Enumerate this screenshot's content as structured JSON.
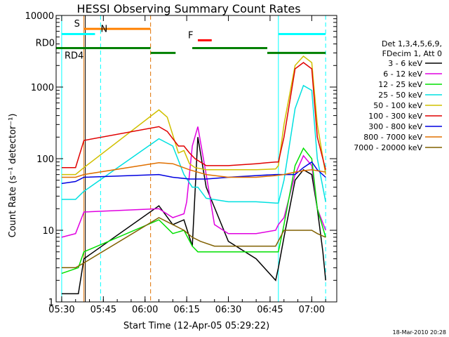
{
  "chart_data": {
    "type": "line",
    "title": "HESSI Observing Summary Count Rates",
    "xlabel": "Start Time (12-Apr-05 05:29:22)",
    "ylabel": "Count Rate (s⁻¹ detector⁻¹)",
    "xlim": [
      "05:28",
      "07:09"
    ],
    "ylim": [
      1,
      10000
    ],
    "yscale": "log",
    "x_ticks": [
      "05:30",
      "05:45",
      "06:00",
      "06:15",
      "06:30",
      "06:45",
      "07:00"
    ],
    "y_ticks": [
      "1",
      "10",
      "100",
      "1000",
      "10000"
    ],
    "legend_header": [
      "Det 1,3,4,5,6,9,",
      "FDecim 1, Att 0"
    ],
    "series": [
      {
        "name": "3 - 6 keV",
        "color": "#000000",
        "x": [
          "05:30",
          "05:36",
          "05:38",
          "06:05",
          "06:10",
          "06:14",
          "06:17",
          "06:19",
          "06:22",
          "06:30",
          "06:40",
          "06:47",
          "06:48",
          "06:50",
          "06:54",
          "06:57",
          "07:00",
          "07:02",
          "07:04",
          "07:05"
        ],
        "y": [
          1.3,
          1.3,
          4,
          22,
          12,
          14,
          6,
          200,
          40,
          7,
          4,
          2,
          3,
          8,
          50,
          70,
          60,
          20,
          5,
          2
        ]
      },
      {
        "name": "6 - 12 keV",
        "color": "#e000e0",
        "x": [
          "05:30",
          "05:35",
          "05:38",
          "06:05",
          "06:10",
          "06:14",
          "06:15",
          "06:17",
          "06:19",
          "06:22",
          "06:25",
          "06:30",
          "06:40",
          "06:47",
          "06:48",
          "06:50",
          "06:54",
          "06:57",
          "07:00",
          "07:02",
          "07:05"
        ],
        "y": [
          8,
          9,
          18,
          20,
          15,
          17,
          25,
          150,
          280,
          60,
          12,
          9,
          9,
          10,
          12,
          15,
          60,
          110,
          80,
          20,
          10
        ]
      },
      {
        "name": "12 - 25 keV",
        "color": "#00e000",
        "x": [
          "05:30",
          "05:36",
          "05:38",
          "06:05",
          "06:10",
          "06:14",
          "06:17",
          "06:19",
          "06:22",
          "06:30",
          "06:40",
          "06:47",
          "06:48",
          "06:50",
          "06:54",
          "06:57",
          "07:00",
          "07:02",
          "07:05"
        ],
        "y": [
          2.5,
          3,
          5,
          14,
          9,
          10,
          6,
          5,
          5,
          5,
          5,
          5,
          5,
          12,
          80,
          140,
          100,
          20,
          8
        ]
      },
      {
        "name": "25 - 50 keV",
        "color": "#00e0e0",
        "x": [
          "05:30",
          "05:35",
          "05:38",
          "06:05",
          "06:10",
          "06:14",
          "06:17",
          "06:19",
          "06:22",
          "06:30",
          "06:40",
          "06:47",
          "06:48",
          "06:50",
          "06:54",
          "06:57",
          "07:00",
          "07:02",
          "07:05"
        ],
        "y": [
          27,
          27,
          35,
          190,
          150,
          60,
          40,
          40,
          28,
          25,
          25,
          24,
          24,
          50,
          500,
          1050,
          900,
          100,
          25
        ]
      },
      {
        "name": "50 - 100 keV",
        "color": "#d0c000",
        "x": [
          "05:30",
          "05:35",
          "05:38",
          "06:05",
          "06:08",
          "06:12",
          "06:14",
          "06:16",
          "06:18",
          "06:22",
          "06:30",
          "06:40",
          "06:47",
          "06:48",
          "06:50",
          "06:54",
          "06:57",
          "07:00",
          "07:02",
          "07:05"
        ],
        "y": [
          60,
          60,
          75,
          480,
          380,
          120,
          130,
          85,
          75,
          70,
          70,
          70,
          72,
          80,
          300,
          2000,
          2700,
          2200,
          300,
          60
        ]
      },
      {
        "name": "100 - 300 keV",
        "color": "#e00000",
        "x": [
          "05:30",
          "05:35",
          "05:38",
          "06:05",
          "06:08",
          "06:12",
          "06:14",
          "06:16",
          "06:18",
          "06:22",
          "06:30",
          "06:40",
          "06:47",
          "06:48",
          "06:50",
          "06:54",
          "06:57",
          "07:00",
          "07:02",
          "07:05"
        ],
        "y": [
          75,
          75,
          180,
          280,
          240,
          150,
          150,
          120,
          100,
          80,
          80,
          85,
          90,
          90,
          200,
          1800,
          2200,
          1800,
          200,
          70
        ]
      },
      {
        "name": "300 - 800 keV",
        "color": "#0000e0",
        "x": [
          "05:30",
          "05:35",
          "05:38",
          "06:05",
          "06:10",
          "06:16",
          "06:22",
          "06:30",
          "06:40",
          "06:47",
          "06:50",
          "06:54",
          "06:57",
          "07:00",
          "07:02",
          "07:05"
        ],
        "y": [
          45,
          48,
          55,
          60,
          55,
          52,
          52,
          55,
          58,
          60,
          60,
          60,
          75,
          90,
          70,
          55
        ]
      },
      {
        "name": "800 - 7000 keV",
        "color": "#e07000",
        "x": [
          "05:30",
          "05:35",
          "05:38",
          "06:05",
          "06:10",
          "06:16",
          "06:22",
          "06:30",
          "06:40",
          "06:47",
          "06:50",
          "06:54",
          "06:57",
          "07:00",
          "07:02",
          "07:05"
        ],
        "y": [
          55,
          55,
          60,
          88,
          85,
          70,
          60,
          55,
          55,
          58,
          60,
          65,
          68,
          70,
          68,
          65
        ]
      },
      {
        "name": "7000 - 20000 keV",
        "color": "#806000",
        "x": [
          "05:30",
          "05:35",
          "05:38",
          "06:05",
          "06:10",
          "06:14",
          "06:17",
          "06:20",
          "06:25",
          "06:30",
          "06:40",
          "06:47",
          "06:50",
          "06:54",
          "06:57",
          "07:00",
          "07:02",
          "07:05"
        ],
        "y": [
          3,
          3,
          3.5,
          15,
          12,
          10,
          8,
          7,
          6,
          6,
          6,
          6,
          10,
          10,
          10,
          10,
          9,
          8
        ]
      }
    ],
    "flag_bars": [
      {
        "label": "S",
        "color": "#ff8000",
        "y": 6500,
        "segments": [
          [
            "05:38",
            "06:02"
          ]
        ]
      },
      {
        "label": "N",
        "color": "#00ffff",
        "y": 5500,
        "segments": [
          [
            "05:30",
            "05:42"
          ],
          [
            "06:48",
            "07:05"
          ]
        ]
      },
      {
        "label": "F",
        "color": "#ff0000",
        "y": 4500,
        "segments": [
          [
            "06:19",
            "06:24"
          ]
        ]
      },
      {
        "label": "RD0",
        "color": "#008000",
        "y": 3500,
        "segments": [
          [
            "05:28",
            "06:02"
          ],
          [
            "06:17",
            "06:44"
          ]
        ]
      },
      {
        "label": "RD4",
        "color": "#008000",
        "y": 3000,
        "segments": [
          [
            "06:02",
            "06:11"
          ],
          [
            "06:44",
            "07:05"
          ]
        ]
      }
    ],
    "markers": [
      {
        "x": "05:38",
        "color": "#e07000",
        "style": "solid"
      },
      {
        "x": "05:38.5",
        "color": "#000000",
        "style": "solid"
      },
      {
        "x": "05:44",
        "color": "#00ffff",
        "style": "dashed"
      },
      {
        "x": "06:02",
        "color": "#e07000",
        "style": "dashed"
      },
      {
        "x": "06:48",
        "color": "#00ffff",
        "style": "solid"
      },
      {
        "x": "07:05",
        "color": "#00ffff",
        "style": "dashed"
      },
      {
        "x": "05:30",
        "color": "#00ffff",
        "style": "solid"
      }
    ],
    "legend_position": "right",
    "grid": false
  },
  "footer": {
    "timestamp": "18-Mar-2010 20:28"
  }
}
